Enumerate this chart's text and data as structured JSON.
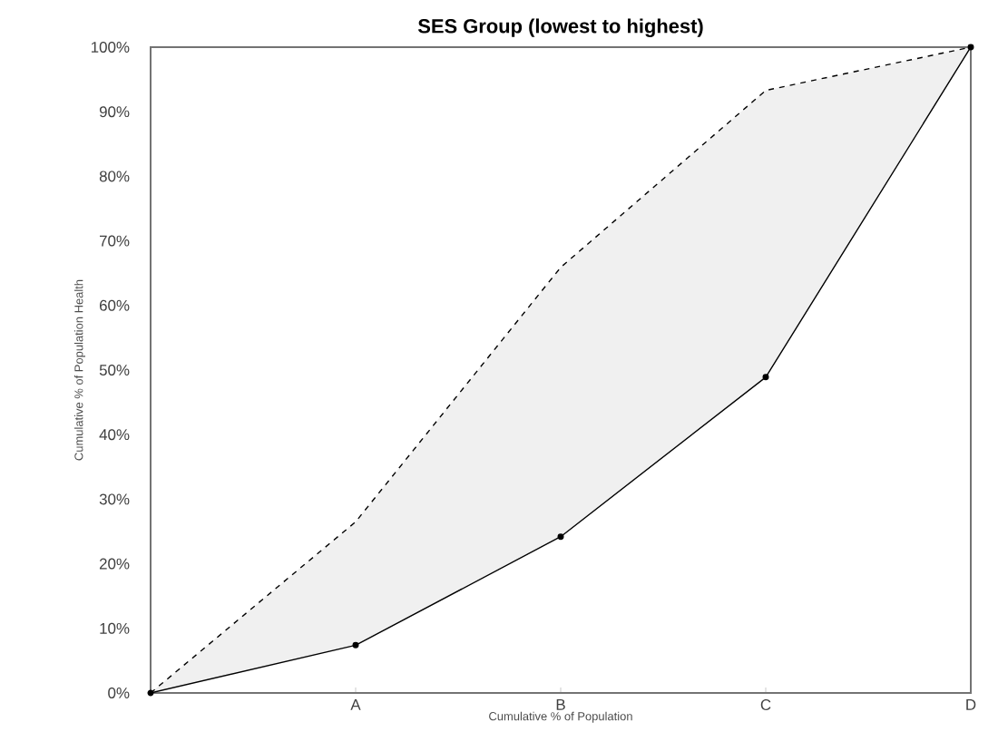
{
  "chart_data": {
    "type": "line",
    "title": "SES Group (lowest to highest)",
    "xlabel": "Cumulative % of Population",
    "ylabel": "Cumulative % of Population Health",
    "categories": [
      null,
      "A",
      "B",
      "C",
      "D"
    ],
    "ylim": [
      0,
      100
    ],
    "yticks": [
      {
        "value": 0,
        "label": "0%"
      },
      {
        "value": 10,
        "label": "10%"
      },
      {
        "value": 20,
        "label": "20%"
      },
      {
        "value": 30,
        "label": "30%"
      },
      {
        "value": 40,
        "label": "40%"
      },
      {
        "value": 50,
        "label": "50%"
      },
      {
        "value": 60,
        "label": "60%"
      },
      {
        "value": 70,
        "label": "70%"
      },
      {
        "value": 80,
        "label": "80%"
      },
      {
        "value": 90,
        "label": "90%"
      },
      {
        "value": 100,
        "label": "100%"
      }
    ],
    "grid": false,
    "marker": "circle",
    "line_style": "solid",
    "series": [
      {
        "color": "#000000",
        "values": [
          0,
          7.4,
          24.2,
          48.9,
          100
        ],
        "lower": [
          0,
          7.4,
          24.2,
          48.9,
          100
        ],
        "upper": [
          0,
          26.5,
          65.9,
          93.3,
          100
        ]
      },
      {
        "color": "#000000",
        "values": [
          0,
          26.5,
          65.9,
          93.3,
          100
        ],
        "marker": "none",
        "line_style": "dashed"
      }
    ]
  }
}
